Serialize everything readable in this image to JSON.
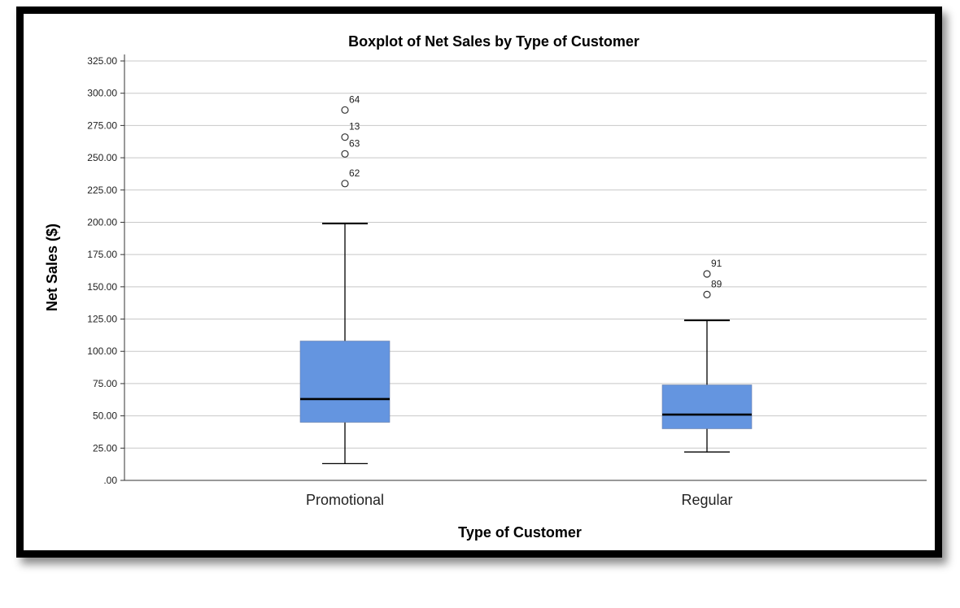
{
  "chart_data": {
    "type": "boxplot",
    "title": "Boxplot of Net Sales by Type of Customer",
    "xlabel": "Type of Customer",
    "ylabel": "Net Sales ($)",
    "ylim": [
      0,
      325
    ],
    "yticks": [
      0,
      25,
      50,
      75,
      100,
      125,
      150,
      175,
      200,
      225,
      250,
      275,
      300,
      325
    ],
    "ytick_labels": [
      ".00",
      "25.00",
      "50.00",
      "75.00",
      "100.00",
      "125.00",
      "150.00",
      "175.00",
      "200.00",
      "225.00",
      "250.00",
      "275.00",
      "300.00",
      "325.00"
    ],
    "grid": true,
    "box_color": "#6495e0",
    "categories": [
      "Promotional",
      "Regular"
    ],
    "boxes": [
      {
        "category": "Promotional",
        "whisker_low": 13,
        "q1": 45,
        "median": 63,
        "q3": 108,
        "whisker_high": 199,
        "outliers": [
          {
            "label": "64",
            "value": 287
          },
          {
            "label": "13",
            "value": 266
          },
          {
            "label": "63",
            "value": 253
          },
          {
            "label": "62",
            "value": 230
          }
        ]
      },
      {
        "category": "Regular",
        "whisker_low": 22,
        "q1": 40,
        "median": 51,
        "q3": 74,
        "whisker_high": 124,
        "outliers": [
          {
            "label": "91",
            "value": 160
          },
          {
            "label": "89",
            "value": 144
          }
        ]
      }
    ]
  }
}
